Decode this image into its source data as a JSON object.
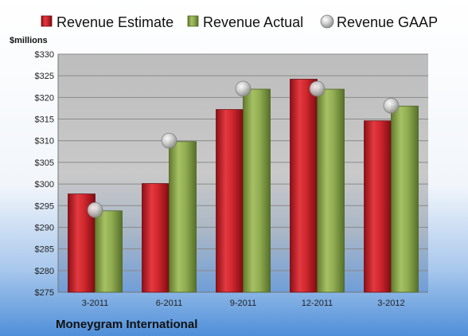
{
  "chart_data": {
    "type": "bar",
    "ylabel": "$millions",
    "ylim": [
      275,
      330
    ],
    "ytick_step": 5,
    "yticks": [
      "$275",
      "$280",
      "$285",
      "$290",
      "$295",
      "$300",
      "$305",
      "$310",
      "$315",
      "$320",
      "$325",
      "$330"
    ],
    "grid": true,
    "legend_position": "top",
    "categories": [
      "3-2011",
      "6-2011",
      "9-2011",
      "12-2011",
      "3-2012"
    ],
    "series": [
      {
        "name": "Revenue Estimate",
        "kind": "bar",
        "color": "#c8202a",
        "values": [
          297.7,
          300.1,
          317.2,
          324.2,
          314.6
        ]
      },
      {
        "name": "Revenue Actual",
        "kind": "bar",
        "color": "#8ea84e",
        "values": [
          293.8,
          309.8,
          321.9,
          321.9,
          318.0
        ]
      },
      {
        "name": "Revenue GAAP",
        "kind": "marker",
        "color": "#b8b8b8",
        "values": [
          294.0,
          310.0,
          322.0,
          322.0,
          318.1
        ]
      }
    ],
    "company": "Moneygram International"
  }
}
